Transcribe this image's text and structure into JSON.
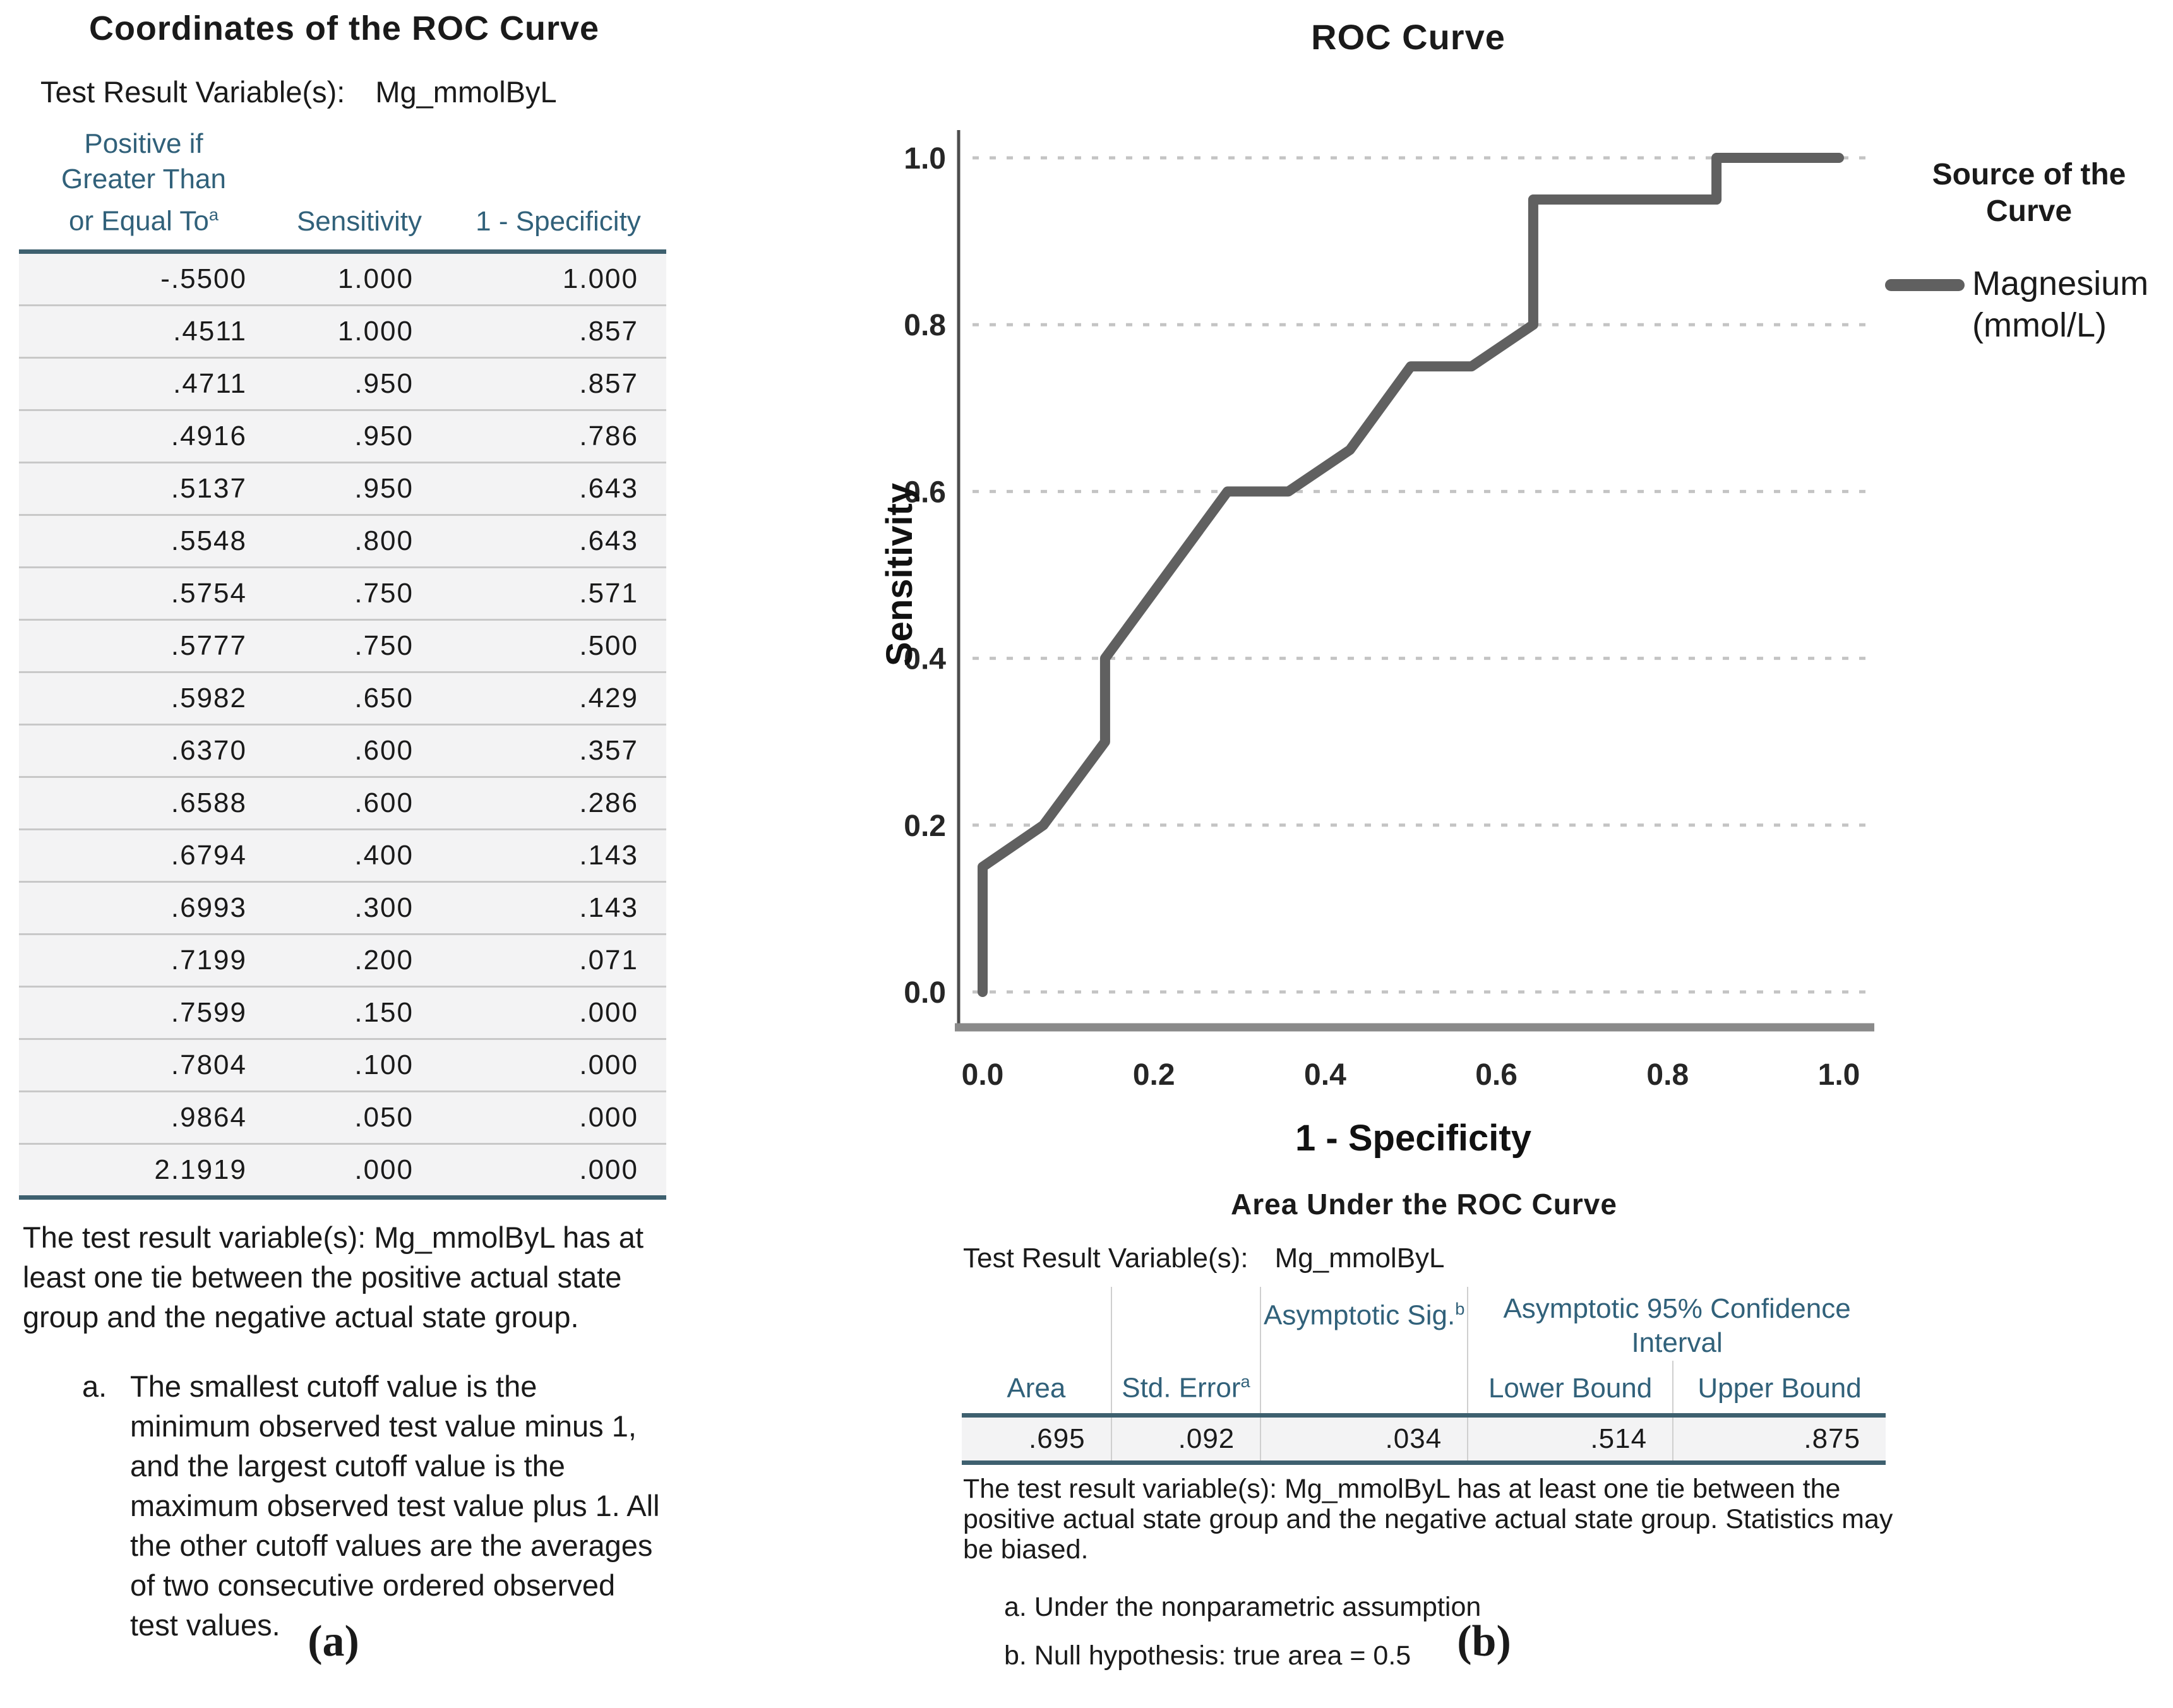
{
  "colors": {
    "header_teal": "#31617a",
    "curve_gray": "#606060",
    "table_border_dark": "#3e606f",
    "row_bg": "#f3f3f4",
    "grid_gray": "#c4c4c4"
  },
  "panel_a": {
    "title": "Coordinates of the ROC Curve",
    "test_result_label": "Test Result Variable(s):",
    "test_result_value": "Mg_mmolByL",
    "columns": {
      "cutoff": "Positive if Greater Than or Equal To",
      "cutoff_sup": "a",
      "sensitivity": "Sensitivity",
      "one_minus_specificity": "1 - Specificity"
    },
    "rows": [
      [
        "-.5500",
        "1.000",
        "1.000"
      ],
      [
        ".4511",
        "1.000",
        ".857"
      ],
      [
        ".4711",
        ".950",
        ".857"
      ],
      [
        ".4916",
        ".950",
        ".786"
      ],
      [
        ".5137",
        ".950",
        ".643"
      ],
      [
        ".5548",
        ".800",
        ".643"
      ],
      [
        ".5754",
        ".750",
        ".571"
      ],
      [
        ".5777",
        ".750",
        ".500"
      ],
      [
        ".5982",
        ".650",
        ".429"
      ],
      [
        ".6370",
        ".600",
        ".357"
      ],
      [
        ".6588",
        ".600",
        ".286"
      ],
      [
        ".6794",
        ".400",
        ".143"
      ],
      [
        ".6993",
        ".300",
        ".143"
      ],
      [
        ".7199",
        ".200",
        ".071"
      ],
      [
        ".7599",
        ".150",
        ".000"
      ],
      [
        ".7804",
        ".100",
        ".000"
      ],
      [
        ".9864",
        ".050",
        ".000"
      ],
      [
        "2.1919",
        ".000",
        ".000"
      ]
    ],
    "footnote": "The test result variable(s): Mg_mmolByL has at least one tie between the positive actual state group and the negative actual state group.",
    "footnote_a_marker": "a.",
    "footnote_a_text": "The smallest cutoff value is the minimum observed test value minus 1, and the largest cutoff value is the maximum observed test value plus 1. All the other cutoff values are the averages of two consecutive ordered observed test values.",
    "caption": "(a)"
  },
  "panel_b": {
    "auc": {
      "title": "Area Under the ROC Curve",
      "test_result_label": "Test Result Variable(s):",
      "test_result_value": "Mg_mmolByL",
      "headers": {
        "area": "Area",
        "std_error": "Std. Error",
        "std_error_sup": "a",
        "asymptotic_sig": "Asymptotic Sig.",
        "asymptotic_sig_sup": "b",
        "ci": "Asymptotic 95% Confidence Interval",
        "lower": "Lower Bound",
        "upper": "Upper Bound"
      },
      "values": {
        "area": ".695",
        "std_error": ".092",
        "asymptotic_sig": ".034",
        "lower": ".514",
        "upper": ".875"
      },
      "footnote": "The test result variable(s): Mg_mmolByL has at least one tie between the positive actual state group and the negative actual state group. Statistics may be biased.",
      "note_a": "a. Under the nonparametric assumption",
      "note_b": "b. Null hypothesis: true area = 0.5"
    },
    "caption": "(b)"
  },
  "chart_data": {
    "type": "line",
    "title": "ROC Curve",
    "xlabel": "1 - Specificity",
    "ylabel": "Sensitivity",
    "xlim": [
      0.0,
      1.0
    ],
    "ylim": [
      0.0,
      1.0
    ],
    "xticks": [
      0.0,
      0.2,
      0.4,
      0.6,
      0.8,
      1.0
    ],
    "yticks": [
      0.0,
      0.2,
      0.4,
      0.6,
      0.8,
      1.0
    ],
    "grid": "horizontal-dashed",
    "legend": {
      "title": "Source of the Curve",
      "position": "right",
      "entries": [
        {
          "label": "Magnesium (mmol/L)",
          "color": "#606060"
        }
      ]
    },
    "series": [
      {
        "name": "Magnesium (mmol/L)",
        "points": [
          [
            0.0,
            0.0
          ],
          [
            0.0,
            0.05
          ],
          [
            0.0,
            0.1
          ],
          [
            0.0,
            0.15
          ],
          [
            0.071,
            0.2
          ],
          [
            0.143,
            0.3
          ],
          [
            0.143,
            0.4
          ],
          [
            0.286,
            0.6
          ],
          [
            0.357,
            0.6
          ],
          [
            0.429,
            0.65
          ],
          [
            0.5,
            0.75
          ],
          [
            0.571,
            0.75
          ],
          [
            0.643,
            0.8
          ],
          [
            0.643,
            0.95
          ],
          [
            0.786,
            0.95
          ],
          [
            0.857,
            0.95
          ],
          [
            0.857,
            1.0
          ],
          [
            1.0,
            1.0
          ]
        ]
      }
    ]
  }
}
